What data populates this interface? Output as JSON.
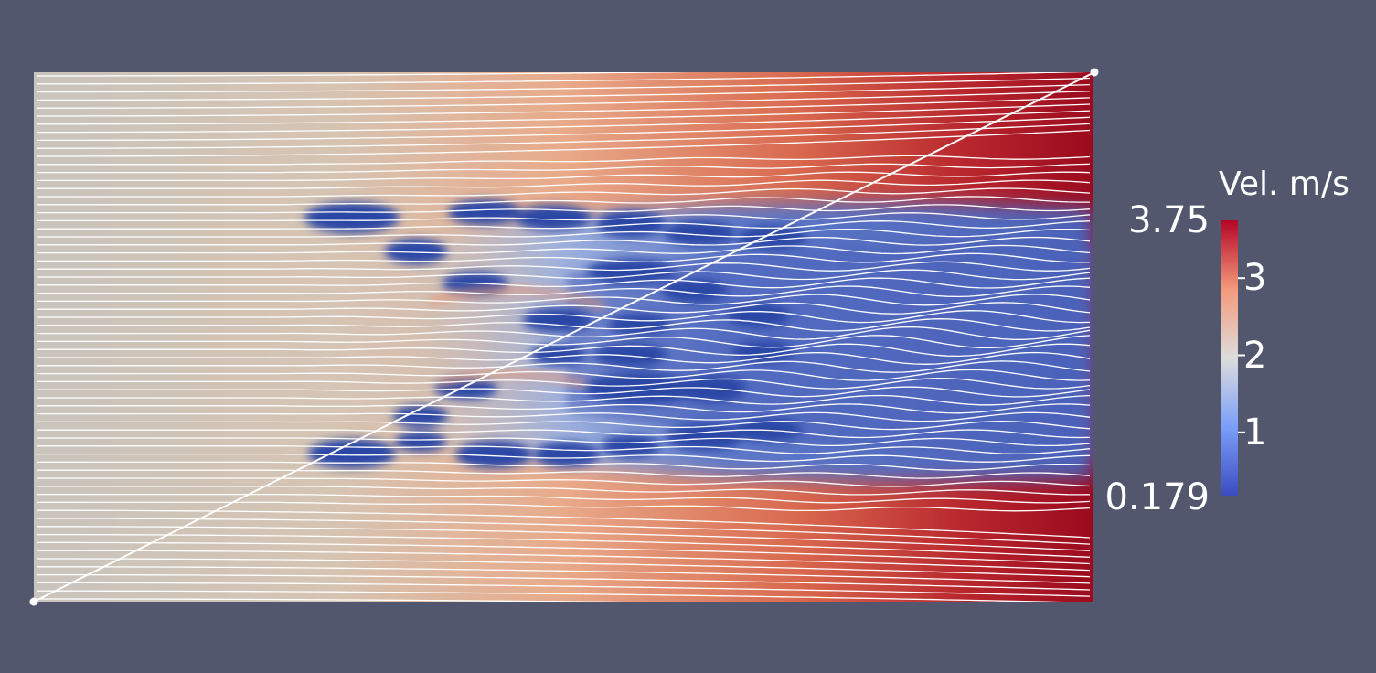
{
  "colors": {
    "background": "#52576e",
    "streamline": "#ffffff",
    "colormap": [
      "#3b4cc0",
      "#7b9ff9",
      "#dddcdc",
      "#f49a7b",
      "#b40426"
    ]
  },
  "legend": {
    "title": "Vel. m/s",
    "max_label": "3.75",
    "min_label": "0.179",
    "min": 0.179,
    "max": 3.75,
    "ticks": [
      {
        "value": 1,
        "label": "1"
      },
      {
        "value": 2,
        "label": "2"
      },
      {
        "value": 3,
        "label": "3"
      }
    ]
  }
}
